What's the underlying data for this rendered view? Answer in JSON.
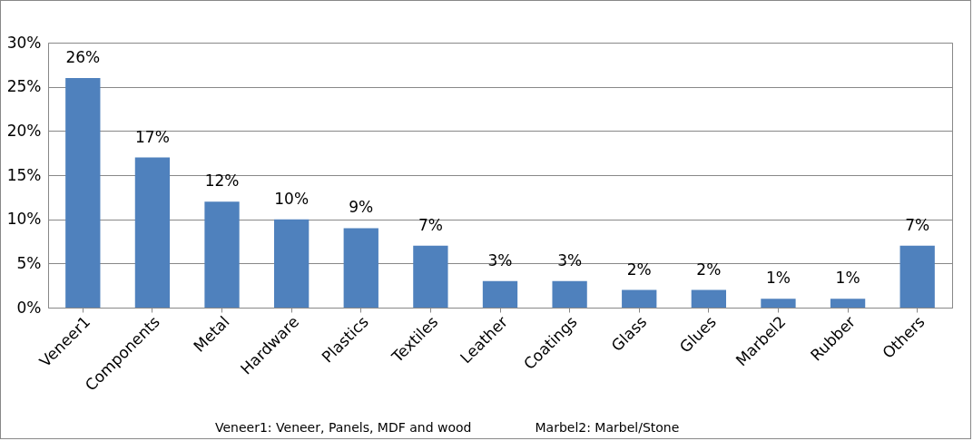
{
  "chart_data": {
    "type": "bar",
    "categories": [
      "Veneer1",
      "Components",
      "Metal",
      "Hardware",
      "Plastics",
      "Textiles",
      "Leather",
      "Coatings",
      "Glass",
      "Glues",
      "Marbel2",
      "Rubber",
      "Others"
    ],
    "values": [
      26,
      17,
      12,
      10,
      9,
      7,
      3,
      3,
      2,
      2,
      1,
      1,
      7
    ],
    "value_labels": [
      "26%",
      "17%",
      "12%",
      "10%",
      "9%",
      "7%",
      "3%",
      "3%",
      "2%",
      "2%",
      "1%",
      "1%",
      "7%"
    ],
    "color": "#4f81bd",
    "ylim": [
      0,
      30
    ],
    "yticks": [
      {
        "value": 0,
        "label": "0%"
      },
      {
        "value": 5,
        "label": "5%"
      },
      {
        "value": 10,
        "label": "10%"
      },
      {
        "value": 15,
        "label": "15%"
      },
      {
        "value": 20,
        "label": "20%"
      },
      {
        "value": 25,
        "label": "25%"
      },
      {
        "value": 30,
        "label": "30%"
      }
    ],
    "grid": "y",
    "annotations": [
      "Veneer1: Veneer, Panels, MDF and wood",
      "Marbel2: Marbel/Stone"
    ]
  }
}
